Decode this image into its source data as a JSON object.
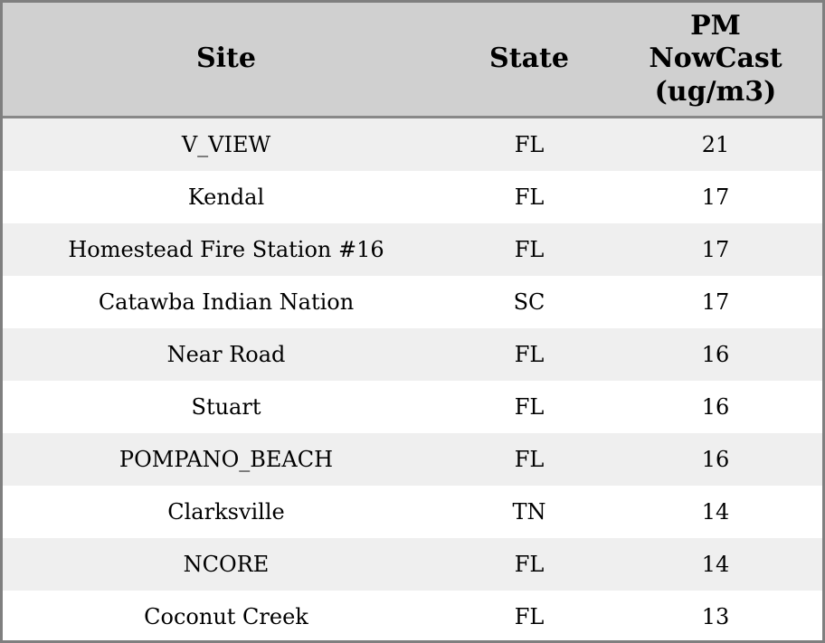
{
  "table": {
    "columns": [
      {
        "label": "Site"
      },
      {
        "label": "State"
      },
      {
        "label": "PM NowCast (ug/m3)"
      }
    ],
    "rows": [
      {
        "site": "V_VIEW",
        "state": "FL",
        "value": "21"
      },
      {
        "site": "Kendal",
        "state": "FL",
        "value": "17"
      },
      {
        "site": "Homestead Fire Station #16",
        "state": "FL",
        "value": "17"
      },
      {
        "site": "Catawba Indian Nation",
        "state": "SC",
        "value": "17"
      },
      {
        "site": "Near Road",
        "state": "FL",
        "value": "16"
      },
      {
        "site": "Stuart",
        "state": "FL",
        "value": "16"
      },
      {
        "site": "POMPANO_BEACH",
        "state": "FL",
        "value": "16"
      },
      {
        "site": "Clarksville",
        "state": "TN",
        "value": "14"
      },
      {
        "site": "NCORE",
        "state": "FL",
        "value": "14"
      },
      {
        "site": "Coconut Creek",
        "state": "FL",
        "value": "13"
      }
    ]
  },
  "chart_data": {
    "type": "table",
    "title": "",
    "columns": [
      "Site",
      "State",
      "PM NowCast (ug/m3)"
    ],
    "rows": [
      [
        "V_VIEW",
        "FL",
        21
      ],
      [
        "Kendal",
        "FL",
        17
      ],
      [
        "Homestead Fire Station #16",
        "FL",
        17
      ],
      [
        "Catawba Indian Nation",
        "SC",
        17
      ],
      [
        "Near Road",
        "FL",
        16
      ],
      [
        "Stuart",
        "FL",
        16
      ],
      [
        "POMPANO_BEACH",
        "FL",
        16
      ],
      [
        "Clarksville",
        "TN",
        14
      ],
      [
        "NCORE",
        "FL",
        14
      ],
      [
        "Coconut Creek",
        "FL",
        13
      ]
    ]
  },
  "colors": {
    "header_bg": "#d0d0d0",
    "row_alt_bg": "#efefef",
    "row_bg": "#ffffff",
    "outer_border": "#7f7f7f",
    "header_divider": "#888888",
    "text": "#000000"
  }
}
